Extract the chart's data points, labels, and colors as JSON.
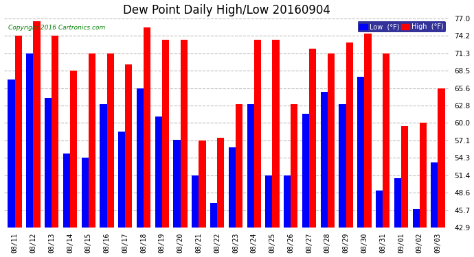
{
  "title": "Dew Point Daily High/Low 20160904",
  "copyright": "Copyright 2016 Cartronics.com",
  "categories": [
    "08/11",
    "08/12",
    "08/13",
    "08/14",
    "08/15",
    "08/16",
    "08/17",
    "08/18",
    "08/19",
    "08/20",
    "08/21",
    "08/22",
    "08/23",
    "08/24",
    "08/25",
    "08/26",
    "08/27",
    "08/28",
    "08/29",
    "08/30",
    "08/31",
    "09/01",
    "09/02",
    "09/03"
  ],
  "low_values": [
    67.0,
    71.3,
    64.0,
    55.0,
    54.3,
    63.0,
    58.5,
    65.6,
    61.0,
    57.2,
    51.4,
    47.0,
    56.0,
    63.0,
    51.4,
    51.4,
    61.5,
    65.0,
    63.0,
    67.5,
    49.0,
    51.0,
    46.0,
    53.5
  ],
  "high_values": [
    74.2,
    76.5,
    74.2,
    68.5,
    71.3,
    71.3,
    69.5,
    75.5,
    73.5,
    73.5,
    57.1,
    57.5,
    63.0,
    73.5,
    73.5,
    63.0,
    72.0,
    71.3,
    73.0,
    74.5,
    71.3,
    59.5,
    60.0,
    65.6
  ],
  "low_color": "#0000ff",
  "high_color": "#ff0000",
  "bg_color": "#ffffff",
  "ylim_min": 42.9,
  "ylim_max": 77.0,
  "yticks": [
    42.9,
    45.7,
    48.6,
    51.4,
    54.3,
    57.1,
    60.0,
    62.8,
    65.6,
    68.5,
    71.3,
    74.2,
    77.0
  ],
  "grid_color": "#bbbbbb",
  "title_fontsize": 12,
  "legend_low_label": "Low  (°F)",
  "legend_high_label": "High  (°F)"
}
